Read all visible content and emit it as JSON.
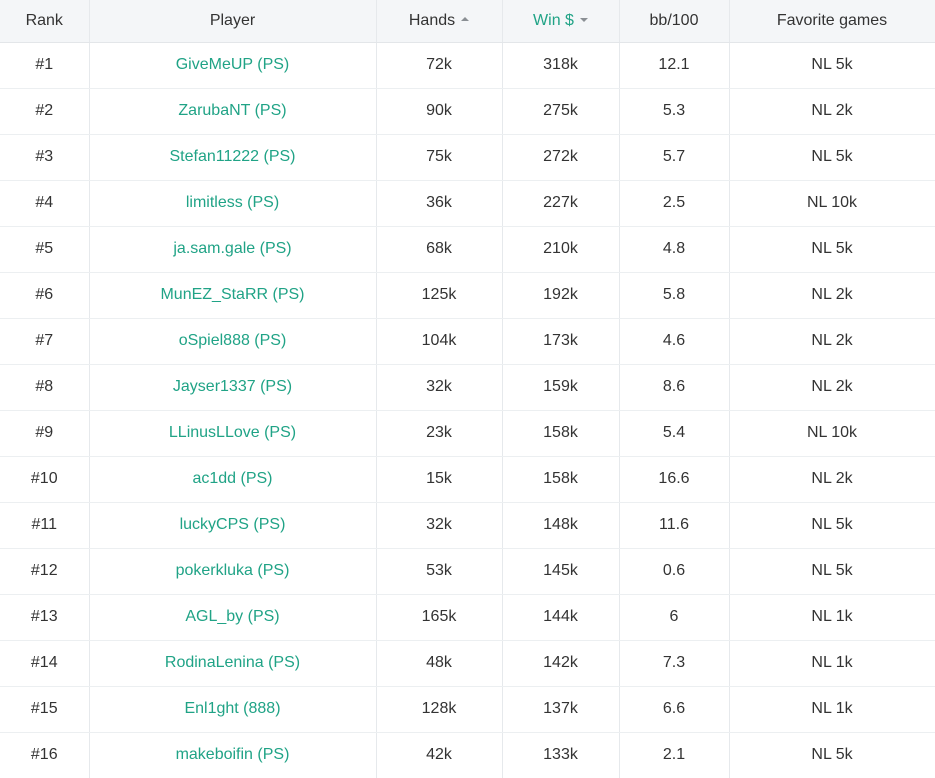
{
  "columns": {
    "rank": "Rank",
    "player": "Player",
    "hands": "Hands",
    "win": "Win $",
    "bb100": "bb/100",
    "favorite": "Favorite games"
  },
  "colors": {
    "accent": "#20a386",
    "text": "#333333",
    "header_bg": "#f4f6f8",
    "border": "#e6e9ec"
  },
  "sort": {
    "hands_icon": "sort-asc-icon",
    "win_icon": "sort-desc-icon",
    "active_column": "win"
  },
  "rows": [
    {
      "rank": "#1",
      "player": "GiveMeUP (PS)",
      "hands": "72k",
      "win": "318k",
      "bb100": "12.1",
      "favorite": "NL 5k"
    },
    {
      "rank": "#2",
      "player": "ZarubaNT (PS)",
      "hands": "90k",
      "win": "275k",
      "bb100": "5.3",
      "favorite": "NL 2k"
    },
    {
      "rank": "#3",
      "player": "Stefan11222 (PS)",
      "hands": "75k",
      "win": "272k",
      "bb100": "5.7",
      "favorite": "NL 5k"
    },
    {
      "rank": "#4",
      "player": "limitless (PS)",
      "hands": "36k",
      "win": "227k",
      "bb100": "2.5",
      "favorite": "NL 10k"
    },
    {
      "rank": "#5",
      "player": "ja.sam.gale (PS)",
      "hands": "68k",
      "win": "210k",
      "bb100": "4.8",
      "favorite": "NL 5k"
    },
    {
      "rank": "#6",
      "player": "MunEZ_StaRR (PS)",
      "hands": "125k",
      "win": "192k",
      "bb100": "5.8",
      "favorite": "NL 2k"
    },
    {
      "rank": "#7",
      "player": "oSpiel888 (PS)",
      "hands": "104k",
      "win": "173k",
      "bb100": "4.6",
      "favorite": "NL 2k"
    },
    {
      "rank": "#8",
      "player": "Jayser1337 (PS)",
      "hands": "32k",
      "win": "159k",
      "bb100": "8.6",
      "favorite": "NL 2k"
    },
    {
      "rank": "#9",
      "player": "LLinusLLove (PS)",
      "hands": "23k",
      "win": "158k",
      "bb100": "5.4",
      "favorite": "NL 10k"
    },
    {
      "rank": "#10",
      "player": "ac1dd (PS)",
      "hands": "15k",
      "win": "158k",
      "bb100": "16.6",
      "favorite": "NL 2k"
    },
    {
      "rank": "#11",
      "player": "luckyCPS (PS)",
      "hands": "32k",
      "win": "148k",
      "bb100": "11.6",
      "favorite": "NL 5k"
    },
    {
      "rank": "#12",
      "player": "pokerkluka (PS)",
      "hands": "53k",
      "win": "145k",
      "bb100": "0.6",
      "favorite": "NL 5k"
    },
    {
      "rank": "#13",
      "player": "AGL_by (PS)",
      "hands": "165k",
      "win": "144k",
      "bb100": "6",
      "favorite": "NL 1k"
    },
    {
      "rank": "#14",
      "player": "RodinaLenina (PS)",
      "hands": "48k",
      "win": "142k",
      "bb100": "7.3",
      "favorite": "NL 1k"
    },
    {
      "rank": "#15",
      "player": "Enl1ght (888)",
      "hands": "128k",
      "win": "137k",
      "bb100": "6.6",
      "favorite": "NL 1k"
    },
    {
      "rank": "#16",
      "player": "makeboifin (PS)",
      "hands": "42k",
      "win": "133k",
      "bb100": "2.1",
      "favorite": "NL 5k"
    }
  ]
}
